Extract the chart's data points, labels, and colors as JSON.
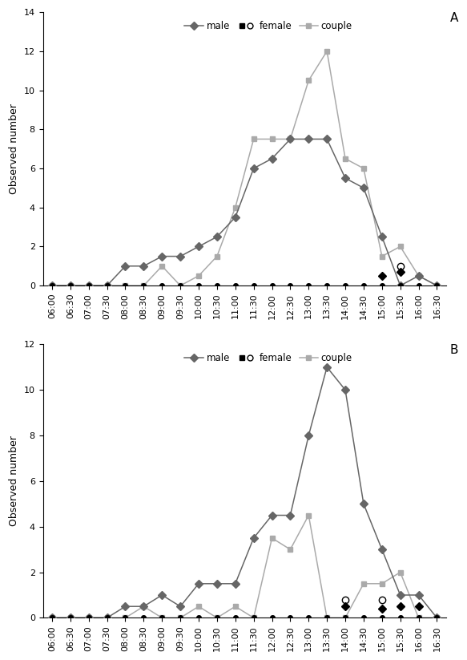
{
  "time_labels": [
    "06:00",
    "06:30",
    "07:00",
    "07:30",
    "08:00",
    "08:30",
    "09:00",
    "09:30",
    "10:00",
    "10:30",
    "11:00",
    "11:30",
    "12:00",
    "12:30",
    "13:00",
    "13:30",
    "14:00",
    "14:30",
    "15:00",
    "15:30",
    "16:00",
    "16:30"
  ],
  "A": {
    "male": [
      0,
      0,
      0,
      0,
      1,
      1,
      1.5,
      1.5,
      2,
      2.5,
      3.5,
      6,
      6.5,
      7.5,
      7.5,
      7.5,
      5.5,
      5,
      2.5,
      0,
      0.5,
      0
    ],
    "couple": [
      0,
      0,
      0,
      0,
      0,
      0,
      1,
      0,
      0.5,
      1.5,
      4,
      7.5,
      7.5,
      7.5,
      10.5,
      12,
      6.5,
      6,
      1.5,
      2,
      0.5,
      0
    ],
    "female_open": [
      0,
      0,
      0,
      0,
      0,
      0,
      0,
      0,
      0,
      0,
      0,
      0,
      0,
      0,
      0,
      0,
      0,
      0,
      0,
      1,
      0,
      0
    ],
    "female_filled": [
      0,
      0,
      0,
      0,
      0,
      0,
      0,
      0,
      0,
      0,
      0,
      0,
      0,
      0,
      0,
      0,
      0,
      0,
      0.5,
      0.7,
      0,
      0
    ],
    "ylim": [
      0,
      14
    ],
    "yticks": [
      0,
      2,
      4,
      6,
      8,
      10,
      12,
      14
    ],
    "label": "A"
  },
  "B": {
    "male": [
      0,
      0,
      0,
      0,
      0.5,
      0.5,
      1,
      0.5,
      1.5,
      1.5,
      1.5,
      3.5,
      4.5,
      4.5,
      8,
      11,
      10,
      5,
      3,
      1,
      1,
      0
    ],
    "couple": [
      0,
      0,
      0,
      0,
      0,
      0.5,
      0,
      0,
      0.5,
      0,
      0.5,
      0,
      3.5,
      3,
      4.5,
      0,
      0,
      1.5,
      1.5,
      2,
      0,
      0
    ],
    "female_open": [
      0,
      0,
      0,
      0,
      0,
      0,
      0,
      0,
      0,
      0,
      0,
      0,
      0,
      0,
      0,
      0,
      0.8,
      0,
      0.8,
      0,
      0,
      0
    ],
    "female_filled": [
      0,
      0,
      0,
      0,
      0,
      0,
      0,
      0,
      0,
      0,
      0,
      0,
      0,
      0,
      0,
      0,
      0.5,
      0,
      0.4,
      0.5,
      0.5,
      0
    ],
    "ylim": [
      0,
      12
    ],
    "yticks": [
      0,
      2,
      4,
      6,
      8,
      10,
      12
    ],
    "label": "B"
  },
  "male_color": "#666666",
  "couple_color": "#aaaaaa",
  "female_open_color": "#000000",
  "female_filled_color": "#000000",
  "ylabel": "Observed number",
  "marker_size_main": 5,
  "linewidth_main": 1.1
}
